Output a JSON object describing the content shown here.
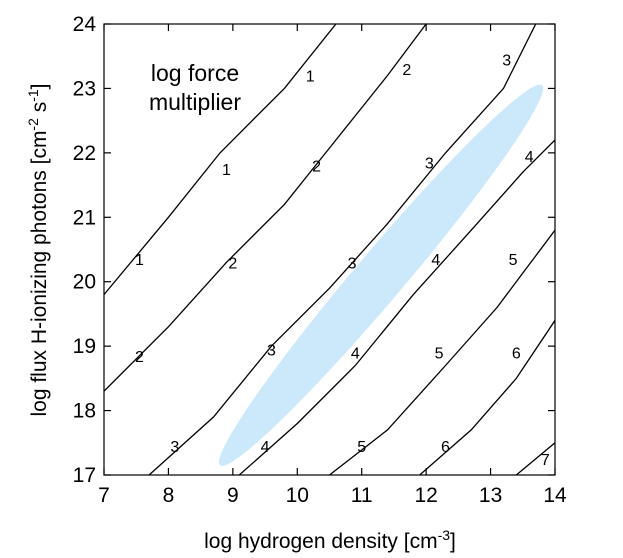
{
  "chart_data": {
    "type": "line",
    "xlabel": "log hydrogen density [cm",
    "xlabel_sup": "-3",
    "xlabel_end": "]",
    "ylabel": "log flux H-ionizing photons [cm",
    "ylabel_sup1": "-2",
    "ylabel_mid": " s",
    "ylabel_sup2": "-1",
    "ylabel_end": "]",
    "xlim": [
      7,
      14
    ],
    "ylim": [
      17,
      24
    ],
    "xticks": [
      7,
      8,
      9,
      10,
      11,
      12,
      13,
      14
    ],
    "yticks": [
      17,
      18,
      19,
      20,
      21,
      22,
      23,
      24
    ],
    "grid": false,
    "annotation": [
      "log force",
      "multiplier"
    ],
    "series": [
      {
        "name": "1",
        "points": [
          [
            7.0,
            19.8
          ],
          [
            8.0,
            21.0
          ],
          [
            8.8,
            22.0
          ],
          [
            9.8,
            23.0
          ],
          [
            10.6,
            24.0
          ]
        ],
        "labels": [
          [
            7.55,
            20.35
          ],
          [
            8.9,
            21.75
          ],
          [
            10.2,
            23.2
          ]
        ]
      },
      {
        "name": "2",
        "points": [
          [
            7.0,
            18.3
          ],
          [
            8.0,
            19.3
          ],
          [
            8.9,
            20.3
          ],
          [
            9.8,
            21.2
          ],
          [
            10.6,
            22.2
          ],
          [
            11.4,
            23.2
          ],
          [
            12.0,
            24.0
          ]
        ],
        "labels": [
          [
            7.55,
            18.85
          ],
          [
            9.0,
            20.3
          ],
          [
            10.3,
            21.8
          ],
          [
            11.7,
            23.3
          ]
        ]
      },
      {
        "name": "3",
        "points": [
          [
            7.7,
            17.0
          ],
          [
            8.7,
            17.9
          ],
          [
            9.6,
            19.0
          ],
          [
            10.5,
            19.9
          ],
          [
            11.4,
            20.9
          ],
          [
            12.3,
            22.0
          ],
          [
            13.2,
            23.0
          ],
          [
            13.7,
            24.0
          ]
        ],
        "labels": [
          [
            8.1,
            17.45
          ],
          [
            9.6,
            18.95
          ],
          [
            10.85,
            20.3
          ],
          [
            12.05,
            21.85
          ],
          [
            13.25,
            23.45
          ]
        ]
      },
      {
        "name": "4",
        "points": [
          [
            9.1,
            17.0
          ],
          [
            10.0,
            17.8
          ],
          [
            10.9,
            18.7
          ],
          [
            11.8,
            19.8
          ],
          [
            12.7,
            20.8
          ],
          [
            13.5,
            21.7
          ],
          [
            14.0,
            22.2
          ]
        ],
        "labels": [
          [
            9.5,
            17.45
          ],
          [
            10.9,
            18.9
          ],
          [
            12.15,
            20.35
          ],
          [
            13.6,
            21.95
          ]
        ]
      },
      {
        "name": "5",
        "points": [
          [
            10.5,
            17.0
          ],
          [
            11.4,
            17.7
          ],
          [
            12.3,
            18.7
          ],
          [
            13.1,
            19.6
          ],
          [
            13.7,
            20.4
          ],
          [
            14.0,
            20.8
          ]
        ],
        "labels": [
          [
            11.0,
            17.45
          ],
          [
            12.2,
            18.9
          ],
          [
            13.35,
            20.35
          ]
        ]
      },
      {
        "name": "6",
        "points": [
          [
            11.9,
            17.0
          ],
          [
            12.7,
            17.7
          ],
          [
            13.4,
            18.5
          ],
          [
            14.0,
            19.4
          ]
        ],
        "labels": [
          [
            12.3,
            17.45
          ],
          [
            13.4,
            18.9
          ]
        ]
      },
      {
        "name": "7",
        "points": [
          [
            13.4,
            17.0
          ],
          [
            14.0,
            17.5
          ]
        ],
        "labels": [
          [
            13.85,
            17.25
          ]
        ]
      }
    ],
    "shaded_region": {
      "color": "#cce9fb",
      "center": [
        11.3,
        20.1
      ],
      "semi_major_diag": [
        2.5,
        2.95
      ],
      "semi_minor": 0.38
    },
    "colors": {
      "line": "#000000",
      "region": "#cce9fb"
    }
  }
}
